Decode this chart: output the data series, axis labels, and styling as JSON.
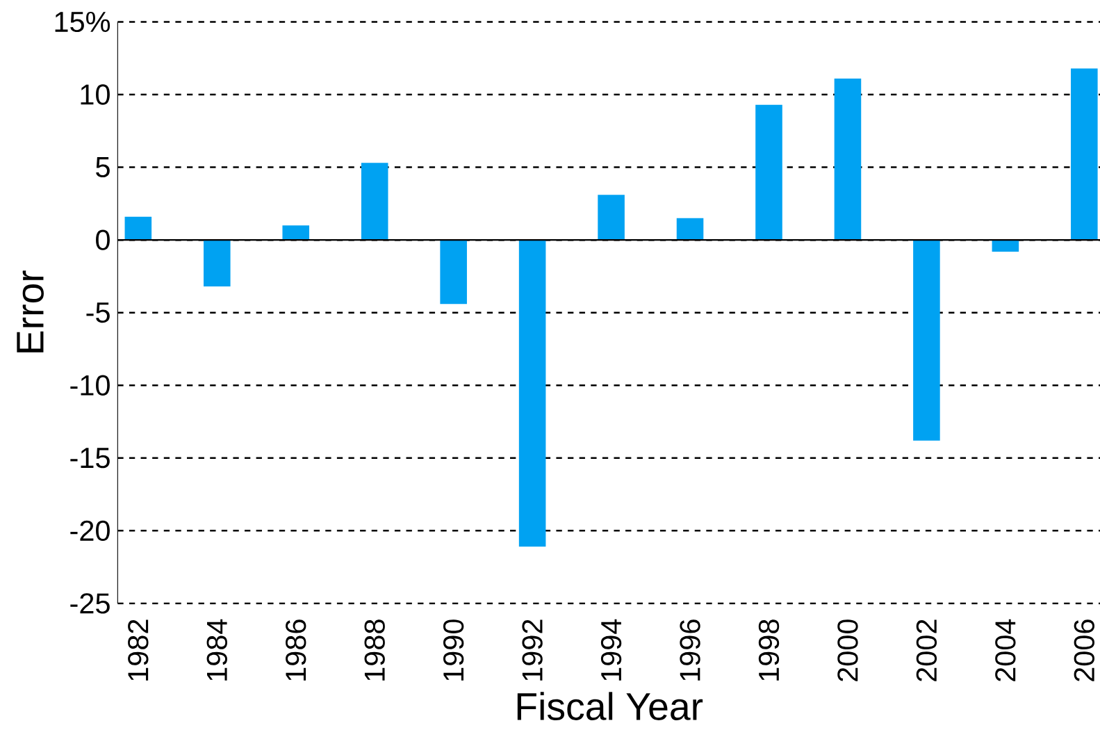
{
  "chart_data": {
    "type": "bar",
    "xlabel": "Fiscal Year",
    "ylabel": "Error",
    "categories": [
      "1982",
      "1984",
      "1986",
      "1988",
      "1990",
      "1992",
      "1994",
      "1996",
      "1998",
      "2000",
      "2002",
      "2004",
      "2006"
    ],
    "values": [
      1.6,
      -3.2,
      1.0,
      5.3,
      -4.4,
      -21.1,
      3.1,
      1.5,
      9.3,
      11.1,
      -13.8,
      -0.8,
      11.8
    ],
    "color": "#00a2f2",
    "ylim": [
      -25,
      15
    ],
    "yticks": [
      -25,
      -20,
      -15,
      -10,
      -5,
      0,
      5,
      10,
      {
        "value": 15,
        "label": "15%"
      }
    ],
    "grid": "y",
    "line_style": "dashed"
  }
}
